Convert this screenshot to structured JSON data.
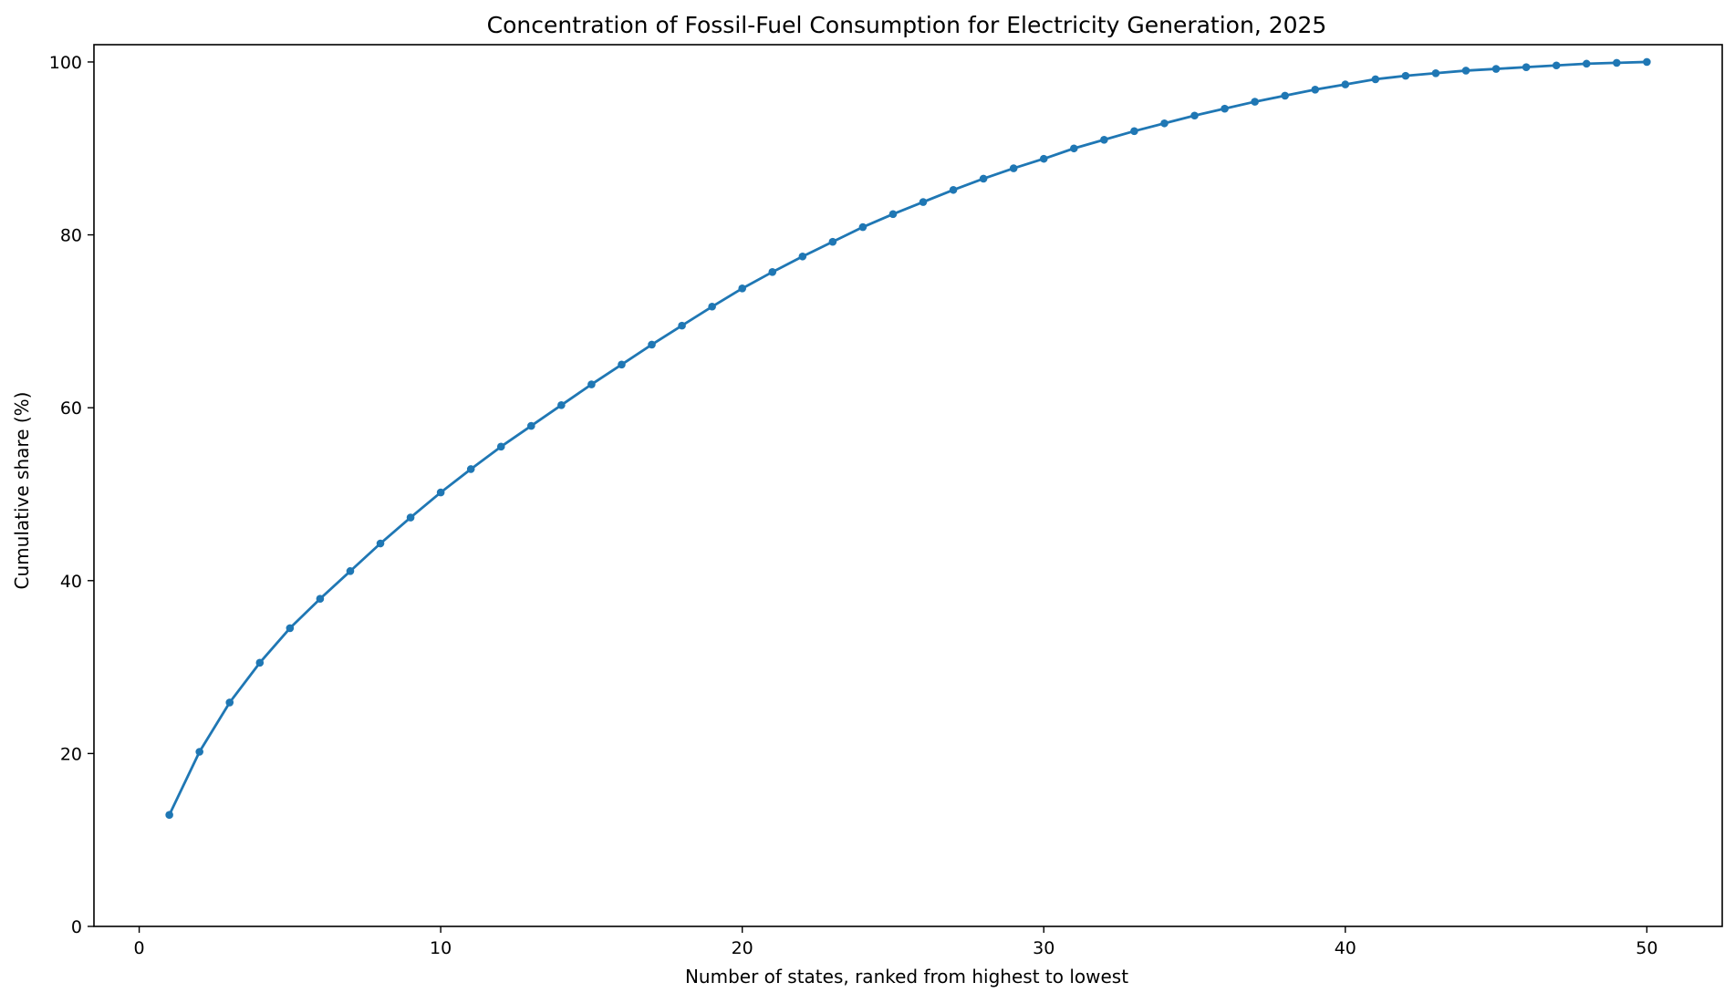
{
  "chart_data": {
    "type": "line",
    "title": "Concentration of Fossil-Fuel Consumption for Electricity Generation, 2025",
    "xlabel": "Number of states, ranked from highest to lowest",
    "ylabel": "Cumulative share (%)",
    "xlim": [
      -1.5,
      52.5
    ],
    "ylim": [
      0,
      102
    ],
    "xticks": [
      0,
      10,
      20,
      30,
      40,
      50
    ],
    "yticks": [
      0,
      20,
      40,
      60,
      80,
      100
    ],
    "grid": false,
    "legend": "none",
    "color": "#1f77b4",
    "marker": "circle",
    "x": [
      1,
      2,
      3,
      4,
      5,
      6,
      7,
      8,
      9,
      10,
      11,
      12,
      13,
      14,
      15,
      16,
      17,
      18,
      19,
      20,
      21,
      22,
      23,
      24,
      25,
      26,
      27,
      28,
      29,
      30,
      31,
      32,
      33,
      34,
      35,
      36,
      37,
      38,
      39,
      40,
      41,
      42,
      43,
      44,
      45,
      46,
      47,
      48,
      49,
      50
    ],
    "series": [
      {
        "values": [
          12.9,
          20.2,
          25.9,
          30.5,
          34.5,
          37.9,
          41.1,
          44.3,
          47.3,
          50.2,
          52.9,
          55.5,
          57.9,
          60.3,
          62.7,
          65.0,
          67.3,
          69.5,
          71.7,
          73.8,
          75.7,
          77.5,
          79.2,
          80.9,
          82.4,
          83.8,
          85.2,
          86.5,
          87.7,
          88.8,
          90.0,
          91.0,
          92.0,
          92.9,
          93.8,
          94.6,
          95.4,
          96.1,
          96.8,
          97.4,
          98.0,
          98.4,
          98.7,
          99.0,
          99.2,
          99.4,
          99.6,
          99.8,
          99.9,
          100.0
        ]
      }
    ]
  }
}
